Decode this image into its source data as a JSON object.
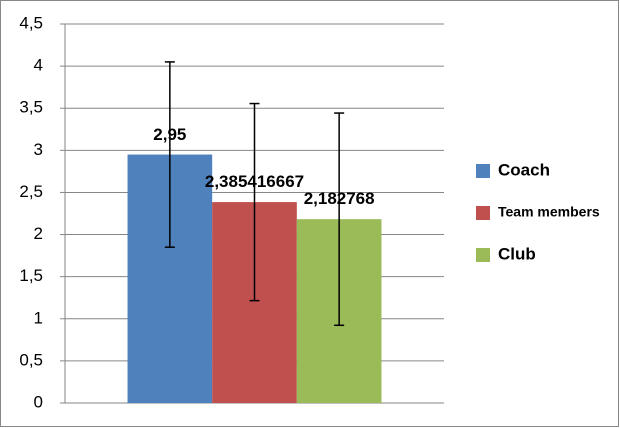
{
  "chart_data": {
    "type": "bar",
    "categories": [
      null
    ],
    "series": [
      {
        "name": "Coach",
        "color": "#4f81bd",
        "values": [
          2.95
        ],
        "value_labels": [
          "2,95"
        ],
        "errors": [
          1.1
        ]
      },
      {
        "name": "Team members",
        "color": "#c0504d",
        "values": [
          2.385416667
        ],
        "value_labels": [
          "2,385416667"
        ],
        "errors": [
          1.17
        ]
      },
      {
        "name": "Club",
        "color": "#9bbb59",
        "values": [
          2.182768
        ],
        "value_labels": [
          "2,182768"
        ],
        "errors": [
          1.26
        ]
      }
    ],
    "ylim": [
      0,
      4.5
    ],
    "yticks": [
      0,
      {
        "value": 0.5,
        "label": "0,5"
      },
      1,
      {
        "value": 1.5,
        "label": "1,5"
      },
      2,
      {
        "value": 2.5,
        "label": "2,5"
      },
      3,
      {
        "value": 3.5,
        "label": "3,5"
      },
      4,
      {
        "value": 4.5,
        "label": "4,5"
      }
    ],
    "grid": true,
    "legend": "right"
  }
}
